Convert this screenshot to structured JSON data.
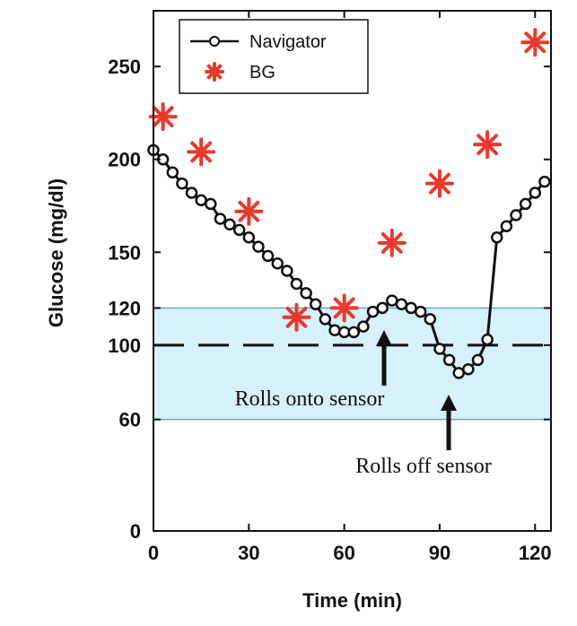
{
  "chart_data": {
    "type": "line",
    "xlabel": "Time (min)",
    "ylabel": "Glucose (mg/dl)",
    "xlim": [
      0,
      125
    ],
    "ylim": [
      0,
      280
    ],
    "x_ticks": [
      0,
      30,
      60,
      90,
      120
    ],
    "y_ticks": [
      0,
      60,
      100,
      120,
      150,
      200,
      250
    ],
    "grid": false,
    "legend_position": "top-left",
    "target_range": [
      60,
      120
    ],
    "target_range_color": "#d6f1fb",
    "reference_line": 100,
    "series": [
      {
        "name": "Navigator",
        "kind": "line-with-markers",
        "color": "#111111",
        "x": [
          0,
          3,
          6,
          9,
          12,
          15,
          18,
          21,
          24,
          27,
          30,
          33,
          36,
          39,
          42,
          45,
          48,
          51,
          54,
          57,
          60,
          63,
          66,
          69,
          72,
          75,
          78,
          81,
          84,
          87,
          90,
          93,
          96,
          99,
          102,
          105,
          108,
          111,
          114,
          117,
          120,
          123
        ],
        "y": [
          205,
          200,
          193,
          187,
          182,
          178,
          176,
          168,
          165,
          162,
          158,
          153,
          148,
          144,
          140,
          133,
          128,
          122,
          114,
          108,
          107,
          107,
          110,
          118,
          120,
          124,
          122,
          120,
          118,
          114,
          98,
          92,
          85,
          87,
          92,
          103,
          158,
          164,
          170,
          176,
          182,
          188
        ]
      },
      {
        "name": "BG",
        "kind": "markers",
        "marker": "asterisk",
        "color": "#e8392e",
        "x": [
          3,
          15,
          30,
          45,
          60,
          75,
          90,
          105,
          120
        ],
        "y": [
          223,
          204,
          172,
          115,
          120,
          155,
          187,
          208,
          263
        ]
      }
    ],
    "annotations": [
      {
        "text": "Rolls onto sensor",
        "x": 75,
        "y": 102,
        "arrow": "up"
      },
      {
        "text": "Rolls off sensor",
        "x": 96,
        "y": 74,
        "arrow": "up"
      }
    ]
  }
}
